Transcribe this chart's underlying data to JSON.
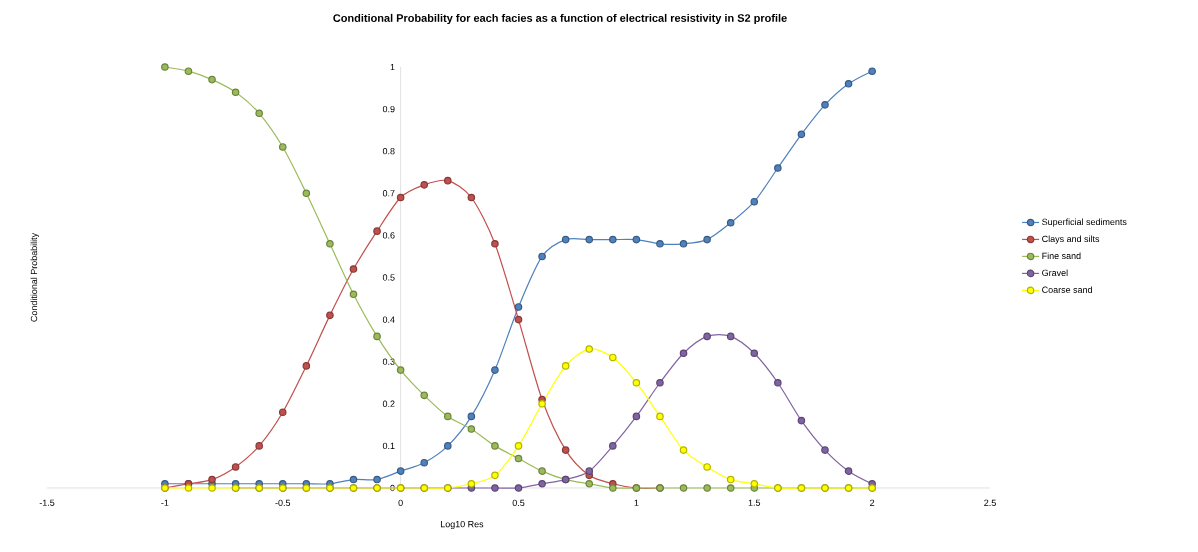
{
  "chart_data": {
    "type": "line",
    "title": "Conditional Probability for each facies as a function of electrical resistivity in S2 profile",
    "xlabel": "Log10 Res",
    "ylabel": "Conditional Probability",
    "x": [
      -1,
      -0.9,
      -0.8,
      -0.7,
      -0.6,
      -0.5,
      -0.4,
      -0.3,
      -0.2,
      -0.1,
      0,
      0.1,
      0.2,
      0.3,
      0.4,
      0.5,
      0.6,
      0.7,
      0.8,
      0.9,
      1,
      1.1,
      1.2,
      1.3,
      1.4,
      1.5,
      1.6,
      1.7,
      1.8,
      1.9,
      2
    ],
    "series": [
      {
        "name": "Superficial sediments",
        "color": "#4f81bd",
        "values": [
          0.01,
          0.01,
          0.01,
          0.01,
          0.01,
          0.01,
          0.01,
          0.01,
          0.02,
          0.02,
          0.04,
          0.06,
          0.1,
          0.17,
          0.28,
          0.43,
          0.55,
          0.59,
          0.59,
          0.59,
          0.59,
          0.58,
          0.58,
          0.59,
          0.63,
          0.68,
          0.76,
          0.84,
          0.91,
          0.96,
          0.99
        ]
      },
      {
        "name": "Clays and silts",
        "color": "#c0504d",
        "values": [
          0,
          0.01,
          0.02,
          0.05,
          0.1,
          0.18,
          0.29,
          0.41,
          0.52,
          0.61,
          0.69,
          0.72,
          0.73,
          0.69,
          0.58,
          0.4,
          0.21,
          0.09,
          0.03,
          0.01,
          0,
          0,
          null,
          null,
          null,
          null,
          null,
          null,
          null,
          null,
          null
        ]
      },
      {
        "name": "Fine sand",
        "color": "#9bbb59",
        "values": [
          1,
          0.99,
          0.97,
          0.94,
          0.89,
          0.81,
          0.7,
          0.58,
          0.46,
          0.36,
          0.28,
          0.22,
          0.17,
          0.14,
          0.1,
          0.07,
          0.04,
          0.02,
          0.01,
          0,
          0,
          0,
          0,
          0,
          0,
          0,
          0,
          0,
          0,
          0,
          0
        ]
      },
      {
        "name": "Gravel",
        "color": "#8064a2",
        "values": [
          null,
          null,
          null,
          0,
          0,
          0,
          0,
          0,
          0,
          0,
          0,
          0,
          0,
          0,
          0,
          0,
          0.01,
          0.02,
          0.04,
          0.1,
          0.17,
          0.25,
          0.32,
          0.36,
          0.36,
          0.32,
          0.25,
          0.16,
          0.09,
          0.04,
          0.01
        ]
      },
      {
        "name": "Coarse sand",
        "color": "#ffff00",
        "values": [
          0,
          0,
          0,
          0,
          0,
          0,
          0,
          0,
          0,
          0,
          0,
          0,
          0,
          0.01,
          0.03,
          0.1,
          0.2,
          0.29,
          0.33,
          0.31,
          0.25,
          0.17,
          0.09,
          0.05,
          0.02,
          0.01,
          0,
          0,
          0,
          0,
          0
        ]
      }
    ],
    "xlim": [
      -1.5,
      2.5
    ],
    "ylim": [
      0,
      1
    ],
    "xticks": [
      -1.5,
      -1,
      -0.5,
      0,
      0.5,
      1,
      1.5,
      2,
      2.5
    ],
    "yticks": [
      0,
      0.1,
      0.2,
      0.3,
      0.4,
      0.5,
      0.6,
      0.7,
      0.8,
      0.9,
      1
    ],
    "legend": "right",
    "marker": "circle",
    "line_style": "solid"
  }
}
